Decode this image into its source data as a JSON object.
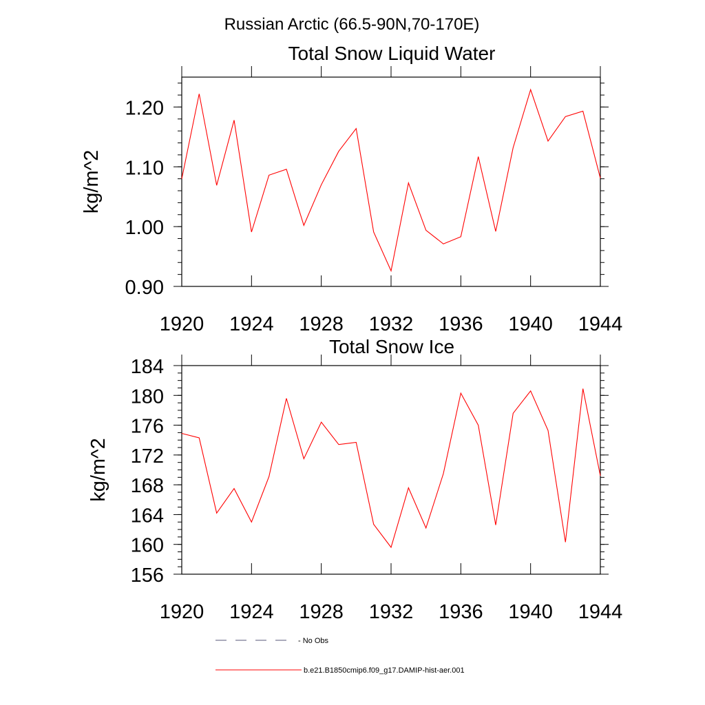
{
  "figure": {
    "suptitle": "Russian Arctic (66.5-90N,70-170E)",
    "line_color": "#ff0000",
    "axis_color": "#000000",
    "legend": {
      "obs_label": "- No Obs",
      "model_label": "b.e21.B1850cmip6.f09_g17.DAMIP-hist-aer.001"
    }
  },
  "chart_data": [
    {
      "type": "line",
      "title": "Total Snow Liquid Water",
      "xlabel": "",
      "ylabel": "kg/m^2",
      "xlim": [
        1920,
        1944
      ],
      "ylim": [
        0.9,
        1.25
      ],
      "xticks": [
        "1920",
        "1924",
        "1928",
        "1932",
        "1936",
        "1940",
        "1944"
      ],
      "yticks": [
        "0.90",
        "1.00",
        "1.10",
        "1.20"
      ],
      "grid": false,
      "series": [
        {
          "name": "b.e21.B1850cmip6.f09_g17.DAMIP-hist-aer.001",
          "color": "#ff0000",
          "x": [
            1920,
            1921,
            1922,
            1923,
            1924,
            1925,
            1926,
            1927,
            1928,
            1929,
            1930,
            1931,
            1932,
            1933,
            1934,
            1935,
            1936,
            1937,
            1938,
            1939,
            1940,
            1941,
            1942,
            1943,
            1944
          ],
          "y": [
            1.08,
            1.222,
            1.069,
            1.178,
            0.991,
            1.086,
            1.096,
            1.002,
            1.07,
            1.126,
            1.164,
            0.991,
            0.926,
            1.073,
            0.994,
            0.971,
            0.983,
            1.117,
            0.992,
            1.132,
            1.229,
            1.143,
            1.184,
            1.193,
            1.081
          ]
        }
      ]
    },
    {
      "type": "line",
      "title": "Total Snow Ice",
      "xlabel": "",
      "ylabel": "kg/m^2",
      "xlim": [
        1920,
        1944
      ],
      "ylim": [
        156,
        184
      ],
      "xticks": [
        "1920",
        "1924",
        "1928",
        "1932",
        "1936",
        "1940",
        "1944"
      ],
      "yticks": [
        "156",
        "160",
        "164",
        "168",
        "172",
        "176",
        "180",
        "184"
      ],
      "grid": false,
      "series": [
        {
          "name": "b.e21.B1850cmip6.f09_g17.DAMIP-hist-aer.001",
          "color": "#ff0000",
          "x": [
            1920,
            1921,
            1922,
            1923,
            1924,
            1925,
            1926,
            1927,
            1928,
            1929,
            1930,
            1931,
            1932,
            1933,
            1934,
            1935,
            1936,
            1937,
            1938,
            1939,
            1940,
            1941,
            1942,
            1943,
            1944
          ],
          "y": [
            174.9,
            174.3,
            164.2,
            167.5,
            163.0,
            169.1,
            179.6,
            171.5,
            176.4,
            173.4,
            173.7,
            162.7,
            159.6,
            167.6,
            162.2,
            169.5,
            180.3,
            176.0,
            162.6,
            177.6,
            180.6,
            175.3,
            160.3,
            180.9,
            169.2
          ]
        }
      ]
    }
  ]
}
